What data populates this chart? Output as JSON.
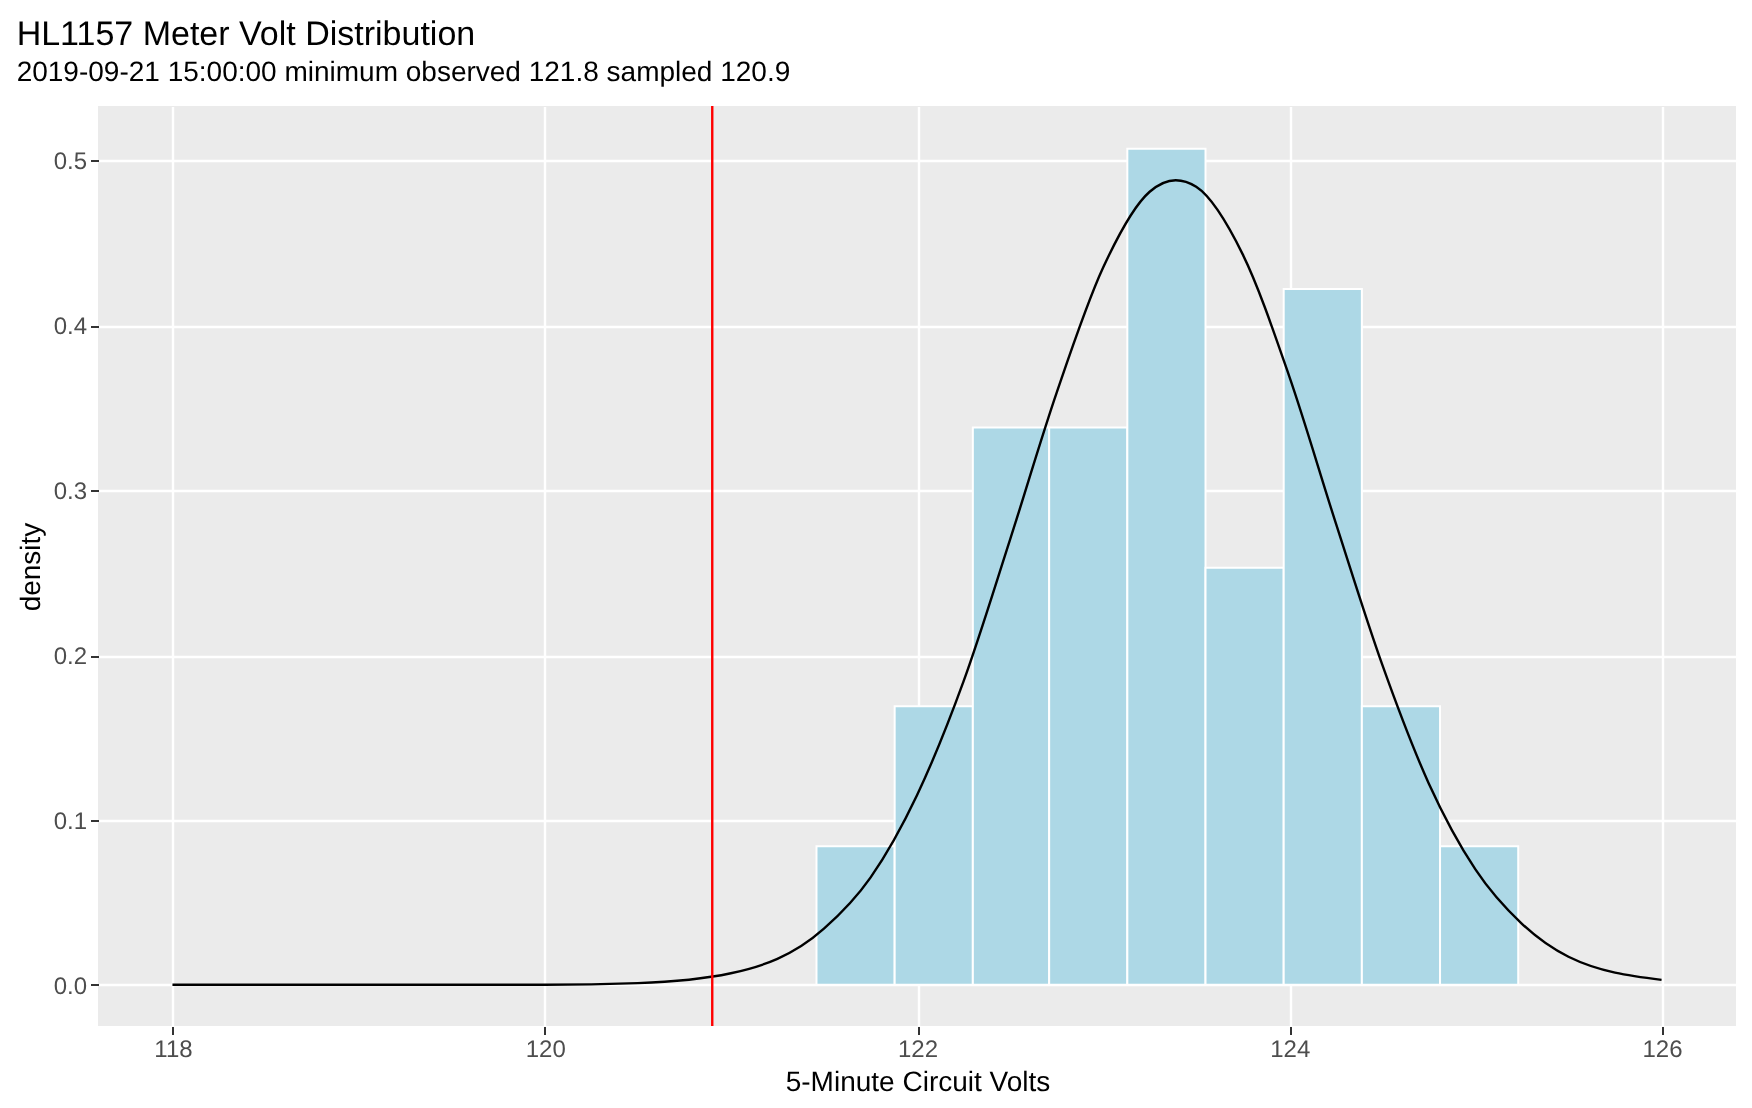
{
  "chart_data": {
    "type": "histogram",
    "title": "HL1157 Meter Volt Distribution",
    "subtitle": "2019-09-21 15:00:00 minimum observed 121.8 sampled 120.9",
    "xlabel": "5-Minute Circuit Volts",
    "ylabel": "density",
    "bins": [
      121.46,
      121.88,
      122.3,
      122.71,
      123.13,
      123.55,
      123.97,
      124.39,
      124.81,
      125.23
    ],
    "values": [
      0.084,
      0.169,
      0.338,
      0.338,
      0.507,
      0.253,
      0.422,
      0.169,
      0.084
    ],
    "color": "#add8e6",
    "series": [
      {
        "type": "line",
        "color": "#000000",
        "x": [
          118,
          119,
          120,
          120.5,
          121,
          121.5,
          121.75,
          122,
          122.25,
          122.5,
          122.75,
          123,
          123.25,
          123.39,
          123.5,
          123.75,
          124,
          124.25,
          124.5,
          124.75,
          125,
          125.25,
          125.5,
          126
        ],
        "values": [
          0,
          0,
          0,
          0.001,
          0.007,
          0.034,
          0.065,
          0.115,
          0.184,
          0.27,
          0.359,
          0.435,
          0.481,
          0.488,
          0.484,
          0.443,
          0.369,
          0.28,
          0.194,
          0.122,
          0.07,
          0.037,
          0.017,
          0.003
        ]
      }
    ],
    "ref_lines": [
      {
        "axis": "x",
        "value": 120.9,
        "color": "#ff0000"
      }
    ],
    "xlim": [
      117.6,
      126.4
    ],
    "ylim": [
      -0.025,
      0.533
    ],
    "xticks": [
      118,
      120,
      122,
      124,
      126
    ],
    "yticks": [
      {
        "value": 0,
        "label": "0.0"
      },
      0.1,
      0.2,
      0.3,
      0.4,
      0.5
    ],
    "grid": true
  }
}
